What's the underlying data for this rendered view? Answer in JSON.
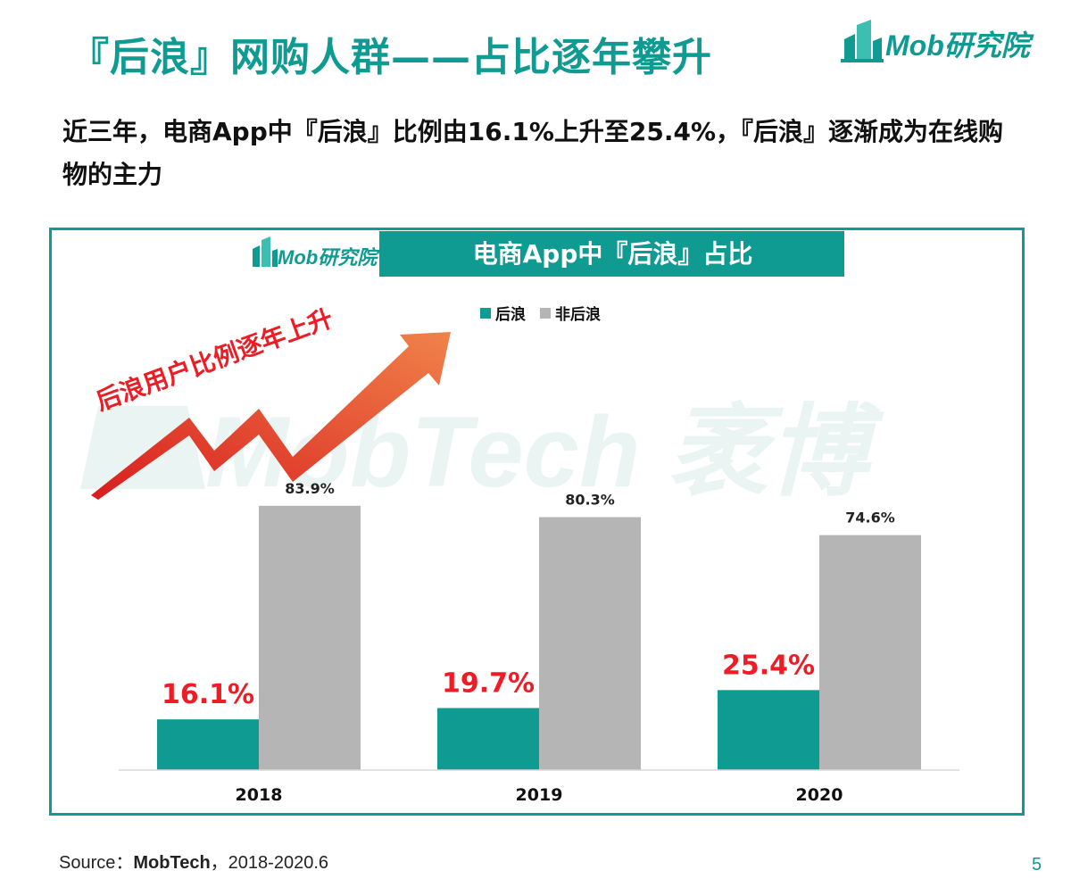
{
  "title": "『后浪』网购人群——占比逐年攀升",
  "brand": {
    "logo_text": "Mob研究院",
    "accent": "#0f9a92",
    "grey": "#b5b5b5",
    "red": "#ee1c25"
  },
  "subtitle": "近三年，电商App中『后浪』比例由16.1%上升至25.4%，『后浪』逐渐成为在线购物的主力",
  "watermark": "MobTech 袤博",
  "arrow_label": "后浪用户比例逐年上升",
  "source": {
    "prefix": "Source：",
    "name": "MobTech",
    "suffix": "，2018-2020.6"
  },
  "page_number": "5",
  "chart_data": {
    "type": "bar",
    "title": "电商App中『后浪』占比",
    "categories": [
      "2018",
      "2019",
      "2020"
    ],
    "series": [
      {
        "name": "后浪",
        "color": "#0f9a92",
        "values": [
          16.1,
          19.7,
          25.4
        ],
        "labels": [
          "16.1%",
          "19.7%",
          "25.4%"
        ]
      },
      {
        "name": "非后浪",
        "color": "#b5b5b5",
        "values": [
          83.9,
          80.3,
          74.6
        ],
        "labels": [
          "83.9%",
          "80.3%",
          "74.6%"
        ]
      }
    ],
    "ylim": [
      0,
      100
    ],
    "grid": false,
    "legend": "top-center",
    "xlabel": "",
    "ylabel": ""
  }
}
